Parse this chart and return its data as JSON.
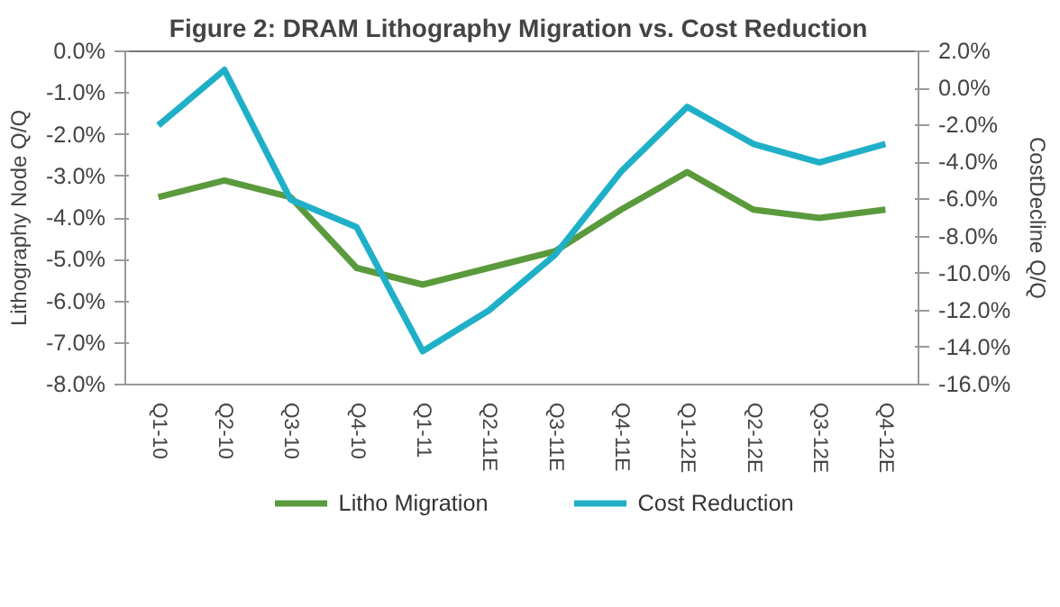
{
  "chart_data": {
    "type": "line",
    "title": "Figure 2: DRAM Lithography  Migration vs. Cost Reduction",
    "ylabel": "Lithography Node Q/Q",
    "y2label": "CostDecline Q/Q",
    "categories": [
      "Q1-10",
      "Q2-10",
      "Q3-10",
      "Q4-10",
      "Q1-11",
      "Q2-11E",
      "Q3-11E",
      "Q4-11E",
      "Q1-12E",
      "Q2-12E",
      "Q3-12E",
      "Q4-12E"
    ],
    "series": [
      {
        "name": "Litho Migration",
        "color": "#5a9a3c",
        "values": [
          -3.5,
          -3.1,
          -3.5,
          -5.2,
          -5.6,
          -5.2,
          -4.8,
          -3.8,
          -2.9,
          -3.8,
          -4.0,
          -3.8
        ]
      },
      {
        "name": "Cost Reduction",
        "color": "#1fb0c8",
        "axis": "y2",
        "values": [
          -2.0,
          1.0,
          -6.0,
          -7.5,
          -14.2,
          -12.0,
          -9.0,
          -4.5,
          -1.0,
          -3.0,
          -4.0,
          -3.0
        ]
      }
    ],
    "ylim": [
      -8,
      0
    ],
    "yticks": [
      {
        "value": -8,
        "label": "-8.0%"
      },
      {
        "value": -7,
        "label": "-7.0%"
      },
      {
        "value": -6,
        "label": "-6.0%"
      },
      {
        "value": -5,
        "label": "-5.0%"
      },
      {
        "value": -4,
        "label": "-4.0%"
      },
      {
        "value": -3,
        "label": "-3.0%"
      },
      {
        "value": -2,
        "label": "-2.0%"
      },
      {
        "value": -1,
        "label": "-1.0%"
      },
      {
        "value": 0,
        "label": "0.0%"
      }
    ],
    "y2lim": [
      -16,
      2
    ],
    "y2ticks": [
      {
        "value": -16,
        "label": "-16.0%"
      },
      {
        "value": -14,
        "label": "-14.0%"
      },
      {
        "value": -12,
        "label": "-12.0%"
      },
      {
        "value": -10,
        "label": "-10.0%"
      },
      {
        "value": -8,
        "label": "-8.0%"
      },
      {
        "value": -6,
        "label": "-6.0%"
      },
      {
        "value": -4,
        "label": "-4.0%"
      },
      {
        "value": -2,
        "label": "-2.0%"
      },
      {
        "value": 0,
        "label": "0.0%"
      },
      {
        "value": 2,
        "label": "2.0%"
      }
    ],
    "grid": false,
    "legend": "bottom",
    "marker": "none",
    "line_style": "solid"
  }
}
